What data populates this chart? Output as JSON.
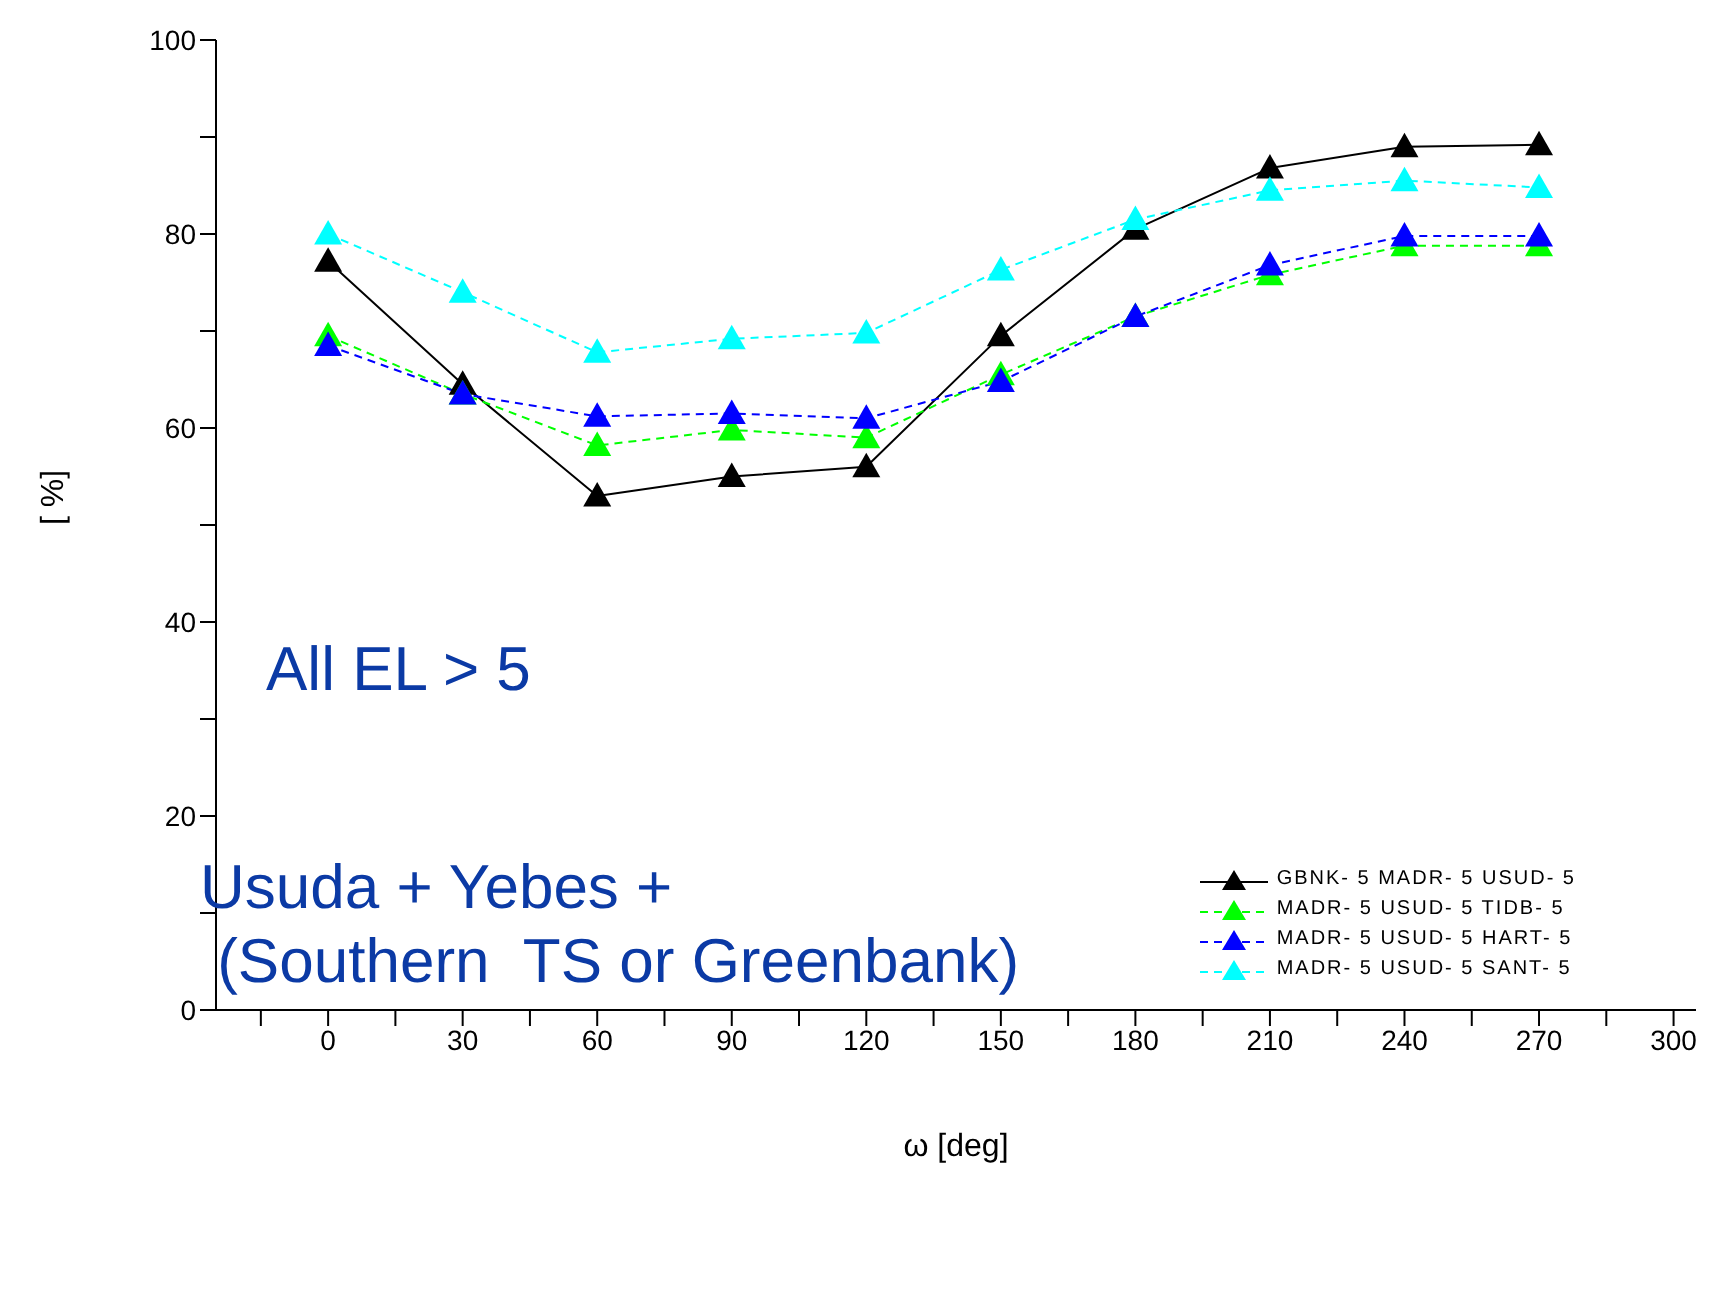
{
  "chart_data": {
    "type": "line",
    "xlabel": "ω [deg]",
    "ylabel": "[ %]",
    "x": [
      0,
      30,
      60,
      90,
      120,
      150,
      180,
      210,
      240,
      270
    ],
    "xlim": [
      -25,
      305
    ],
    "xticks": [
      {
        "value": -15,
        "label": null
      },
      0,
      {
        "value": 15,
        "label": null
      },
      30,
      {
        "value": 45,
        "label": null
      },
      60,
      {
        "value": 75,
        "label": null
      },
      90,
      {
        "value": 105,
        "label": null
      },
      120,
      {
        "value": 135,
        "label": null
      },
      150,
      {
        "value": 165,
        "label": null
      },
      180,
      {
        "value": 195,
        "label": null
      },
      210,
      {
        "value": 225,
        "label": null
      },
      240,
      {
        "value": 255,
        "label": null
      },
      270,
      {
        "value": 285,
        "label": null
      },
      300
    ],
    "ylim": [
      0,
      100
    ],
    "yticks": [
      0,
      {
        "value": 10,
        "label": null
      },
      20,
      {
        "value": 30,
        "label": null
      },
      40,
      {
        "value": 50,
        "label": null
      },
      60,
      {
        "value": 70,
        "label": null
      },
      80,
      {
        "value": 90,
        "label": null
      },
      100
    ],
    "marker": "triangle",
    "legend": "bottom right",
    "grid": false,
    "series": [
      {
        "name": "GBNK- 5 MADR- 5 USUD- 5",
        "color": "#000000",
        "line_style": "solid",
        "values": [
          77.2,
          64.5,
          53,
          55,
          56,
          69.5,
          80.5,
          86.8,
          89,
          89.2
        ]
      },
      {
        "name": "MADR- 5 USUD- 5 TIDB- 5",
        "color": "#00ff00",
        "line_style": "dashed",
        "values": [
          69.5,
          63.5,
          58.2,
          59.8,
          59,
          65.5,
          71.5,
          75.8,
          78.8,
          78.8
        ]
      },
      {
        "name": "MADR- 5 USUD- 5 HART- 5",
        "color": "#0000ff",
        "line_style": "dashed",
        "values": [
          68.5,
          63.5,
          61.2,
          61.5,
          61,
          64.8,
          71.5,
          76.8,
          79.8,
          79.8
        ]
      },
      {
        "name": "MADR- 5 USUD- 5 SANT- 5",
        "color": "#00ffff",
        "line_style": "dashed",
        "values": [
          80,
          74,
          67.8,
          69.2,
          69.8,
          76.3,
          81.5,
          84.5,
          85.5,
          84.8
        ]
      }
    ],
    "annotations": [
      "All EL > 5",
      "Usuda + Yebes +\n (Southern  TS or Greenbank)"
    ]
  }
}
